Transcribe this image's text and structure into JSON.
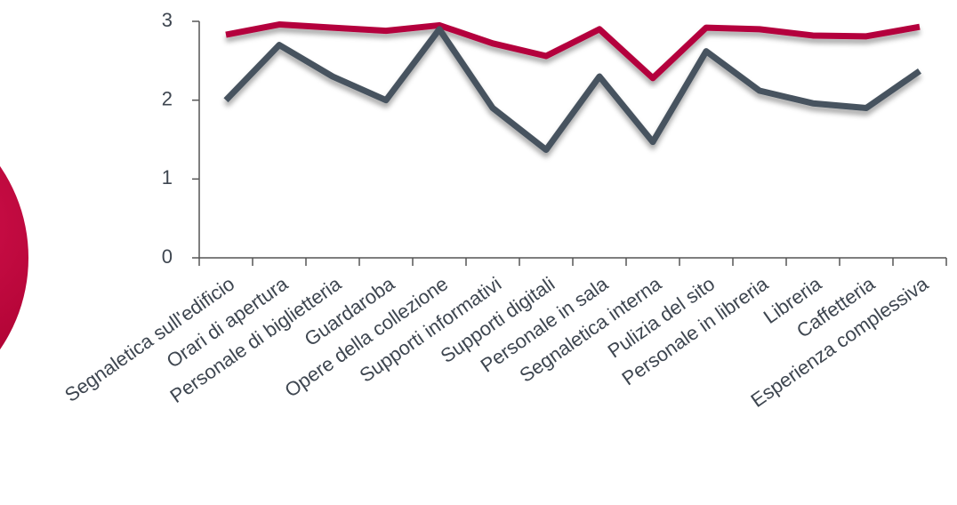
{
  "chart_data": {
    "type": "line",
    "categories": [
      "Segnaletica sull'edificio",
      "Orari di apertura",
      "Personale di biglietteria",
      "Guardaroba",
      "Opere della collezione",
      "Supporti informativi",
      "Supporti digitali",
      "Personale in sala",
      "Segnaletica interna",
      "Pulizia del sito",
      "Personale in libreria",
      "Libreria",
      "Caffetteria",
      "Esperienza complessiva"
    ],
    "series": [
      {
        "color": "#b4003c",
        "values": [
          2.83,
          2.96,
          2.92,
          2.88,
          2.95,
          2.72,
          2.56,
          2.9,
          2.28,
          2.92,
          2.9,
          2.82,
          2.81,
          2.93
        ]
      },
      {
        "color": "#47535f",
        "values": [
          2.0,
          2.7,
          2.3,
          2.0,
          2.9,
          1.9,
          1.37,
          2.3,
          1.47,
          2.62,
          2.12,
          1.96,
          1.9,
          2.37
        ]
      }
    ],
    "ylim": [
      0,
      3
    ],
    "yticks": [
      0,
      1,
      2,
      3
    ]
  }
}
